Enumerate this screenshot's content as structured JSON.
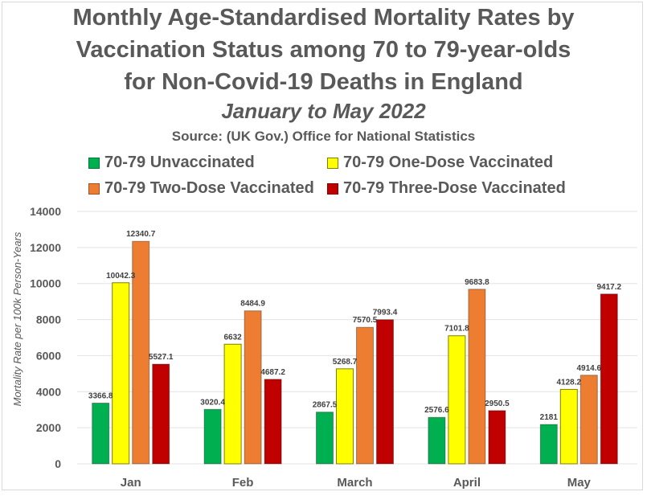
{
  "chart_data": {
    "type": "bar",
    "title": [
      "Monthly Age-Standardised Mortality Rates by",
      "Vaccination Status among 70 to 79-year-olds",
      "for Non-Covid-19 Deaths in England"
    ],
    "subtitle": "January to May 2022",
    "source": "Source: (UK Gov.) Office for National Statistics",
    "xlabel": "",
    "ylabel": "Mortality Rate per 100k Person-Years",
    "ylim": [
      0,
      14000
    ],
    "yticks": [
      0,
      2000,
      4000,
      6000,
      8000,
      10000,
      12000,
      14000
    ],
    "grid": true,
    "legend_position": "top",
    "categories": [
      "Jan",
      "Feb",
      "March",
      "April",
      "May"
    ],
    "series": [
      {
        "name": "70-79 Unvaccinated",
        "color": "#00b050",
        "values": [
          3366.8,
          3020.4,
          2867.5,
          2576.6,
          2181
        ]
      },
      {
        "name": "70-79 One-Dose Vaccinated",
        "color": "#ffff00",
        "values": [
          10042.3,
          6632,
          5268.7,
          7101.8,
          4128.2
        ]
      },
      {
        "name": "70-79 Two-Dose Vaccinated",
        "color": "#ed7d31",
        "values": [
          12340.7,
          8484.9,
          7570.5,
          9683.8,
          4914.6
        ]
      },
      {
        "name": "70-79 Three-Dose Vaccinated",
        "color": "#c00000",
        "values": [
          5527.1,
          4687.2,
          7993.4,
          2950.5,
          9417.2
        ]
      }
    ]
  }
}
